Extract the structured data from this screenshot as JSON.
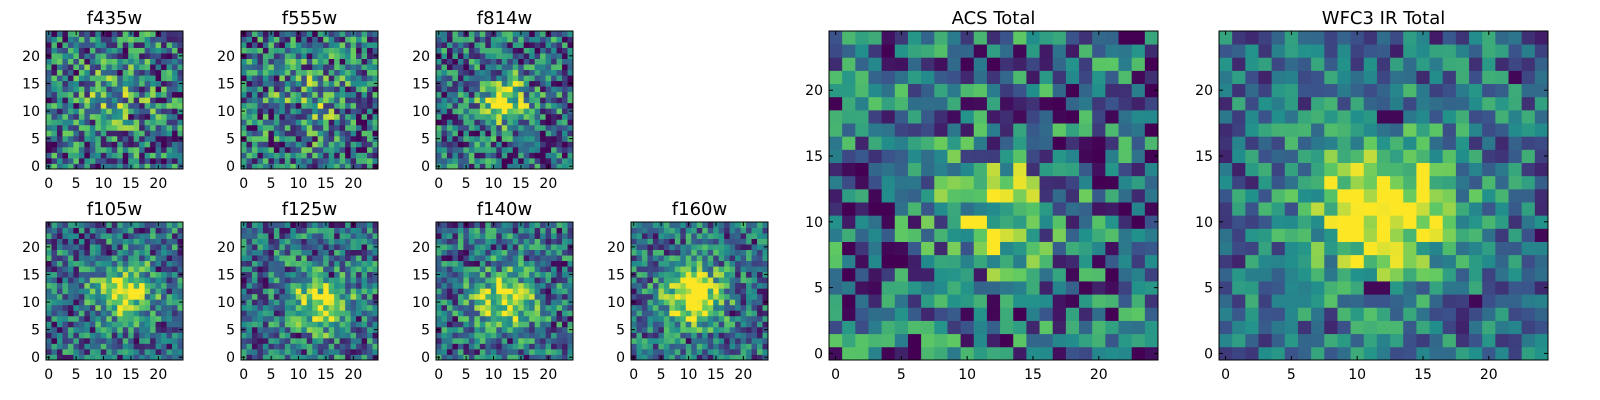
{
  "chart_data": {
    "type": "heatmap",
    "colormap": "viridis",
    "colormap_stops": [
      "#440154",
      "#3b528b",
      "#21918c",
      "#5ec962",
      "#fde725"
    ],
    "grid_size": 25,
    "panels": [
      {
        "title": "f435w",
        "xticks": [
          0,
          5,
          10,
          15,
          20
        ],
        "yticks": [
          0,
          5,
          10,
          15,
          20
        ],
        "xlim": [
          -0.5,
          24.5
        ],
        "ylim": [
          -0.5,
          24.5
        ],
        "noise": 0.85,
        "peak": 0.25,
        "center": [
          12,
          12
        ],
        "spread": 5,
        "dark_spots": [
          [
            20,
            17
          ],
          [
            21,
            18
          ],
          [
            5,
            11
          ],
          [
            15,
            9
          ],
          [
            13,
            17
          ],
          [
            23,
            5
          ]
        ]
      },
      {
        "title": "f555w",
        "xticks": [
          0,
          5,
          10,
          15,
          20
        ],
        "yticks": [
          0,
          5,
          10,
          15,
          20
        ],
        "xlim": [
          -0.5,
          24.5
        ],
        "ylim": [
          -0.5,
          24.5
        ],
        "noise": 0.85,
        "peak": 0.25,
        "center": [
          12,
          12
        ],
        "spread": 5,
        "dark_spots": [
          [
            3,
            2
          ],
          [
            18,
            19
          ],
          [
            10,
            11
          ],
          [
            21,
            6
          ],
          [
            6,
            16
          ]
        ]
      },
      {
        "title": "f814w",
        "xticks": [
          0,
          5,
          10,
          15,
          20
        ],
        "yticks": [
          0,
          5,
          10,
          15,
          20
        ],
        "xlim": [
          -0.5,
          24.5
        ],
        "ylim": [
          -0.5,
          24.5
        ],
        "noise": 0.8,
        "peak": 0.6,
        "center": [
          12,
          12
        ],
        "spread": 3,
        "dark_spots": [
          [
            2,
            18
          ],
          [
            20,
            3
          ],
          [
            15,
            21
          ],
          [
            6,
            6
          ]
        ]
      },
      {
        "title": "f105w",
        "xticks": [
          0,
          5,
          10,
          15,
          20
        ],
        "yticks": [
          0,
          5,
          10,
          15,
          20
        ],
        "xlim": [
          -0.5,
          24.5
        ],
        "ylim": [
          -0.5,
          24.5
        ],
        "noise": 0.7,
        "peak": 0.55,
        "center": [
          14,
          12
        ],
        "spread": 4,
        "dark_spots": [
          [
            16,
            3
          ],
          [
            2,
            5
          ],
          [
            20,
            16
          ],
          [
            11,
            19
          ]
        ]
      },
      {
        "title": "f125w",
        "xticks": [
          0,
          5,
          10,
          15,
          20
        ],
        "yticks": [
          0,
          5,
          10,
          15,
          20
        ],
        "xlim": [
          -0.5,
          24.5
        ],
        "ylim": [
          -0.5,
          24.5
        ],
        "noise": 0.7,
        "peak": 0.55,
        "center": [
          14,
          10
        ],
        "spread": 4,
        "dark_spots": [
          [
            16,
            15
          ],
          [
            10,
            4
          ],
          [
            4,
            14
          ],
          [
            21,
            7
          ]
        ]
      },
      {
        "title": "f140w",
        "xticks": [
          0,
          5,
          10,
          15,
          20
        ],
        "yticks": [
          0,
          5,
          10,
          15,
          20
        ],
        "xlim": [
          -0.5,
          24.5
        ],
        "ylim": [
          -0.5,
          24.5
        ],
        "noise": 0.7,
        "peak": 0.55,
        "center": [
          12,
          10
        ],
        "spread": 4,
        "dark_spots": [
          [
            13,
            3
          ],
          [
            7,
            17
          ],
          [
            20,
            12
          ],
          [
            3,
            7
          ]
        ]
      },
      {
        "title": "f160w",
        "xticks": [
          0,
          5,
          10,
          15,
          20
        ],
        "yticks": [
          0,
          5,
          10,
          15,
          20
        ],
        "xlim": [
          -0.5,
          24.5
        ],
        "ylim": [
          -0.5,
          24.5
        ],
        "noise": 0.65,
        "peak": 0.7,
        "center": [
          11,
          11
        ],
        "spread": 4,
        "dark_spots": [
          [
            0,
            10
          ],
          [
            22,
            21
          ],
          [
            10,
            3
          ],
          [
            18,
            8
          ]
        ]
      },
      {
        "title": "ACS Total",
        "xticks": [
          0,
          5,
          10,
          15,
          20
        ],
        "yticks": [
          0,
          5,
          10,
          15,
          20
        ],
        "xlim": [
          -0.5,
          24.5
        ],
        "ylim": [
          -0.5,
          24.5
        ],
        "noise": 0.8,
        "peak": 0.5,
        "center": [
          12,
          11
        ],
        "spread": 3,
        "dark_spots": [
          [
            17,
            18
          ],
          [
            19,
            15
          ],
          [
            14,
            23
          ],
          [
            4,
            10
          ],
          [
            4,
            8
          ],
          [
            18,
            4
          ],
          [
            10,
            3
          ],
          [
            21,
            18
          ],
          [
            3,
            12
          ],
          [
            24,
            11
          ]
        ]
      },
      {
        "title": "WFC3 IR Total",
        "xticks": [
          0,
          5,
          10,
          15,
          20
        ],
        "yticks": [
          0,
          5,
          10,
          15,
          20
        ],
        "xlim": [
          -0.5,
          24.5
        ],
        "ylim": [
          -0.5,
          24.5
        ],
        "noise": 0.55,
        "peak": 0.75,
        "center": [
          12,
          11
        ],
        "spread": 4,
        "dark_spots": [
          [
            12,
            18
          ],
          [
            13,
            18
          ],
          [
            11,
            5
          ],
          [
            12,
            5
          ],
          [
            22,
            21
          ],
          [
            24,
            9
          ],
          [
            19,
            4
          ]
        ]
      }
    ]
  }
}
